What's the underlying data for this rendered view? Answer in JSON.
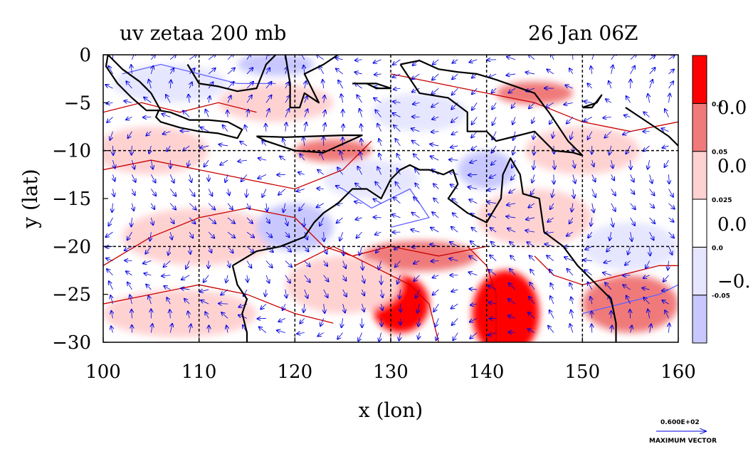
{
  "chart_data": {
    "type": "heatmap",
    "title": "uv zetaa 200 mb",
    "time_label": "26 Jan 06Z",
    "xlabel": "x (lon)",
    "ylabel": "y (lat)",
    "xlim": [
      100,
      160
    ],
    "ylim": [
      -30,
      0
    ],
    "x_ticks": [
      100,
      110,
      120,
      130,
      140,
      150,
      160
    ],
    "y_ticks": [
      0,
      -5,
      -10,
      -15,
      -20,
      -25,
      -30
    ],
    "x_tick_labels": [
      "100",
      "110",
      "120",
      "130",
      "140",
      "150",
      "160"
    ],
    "y_tick_labels": [
      "0",
      "−5",
      "−10",
      "−15",
      "−20",
      "−25",
      "−30"
    ],
    "grid": true,
    "grid_x": [
      110,
      120,
      130,
      140,
      150
    ],
    "grid_y": [
      -10,
      -20
    ],
    "colorbar": {
      "levels": [
        -0.05,
        0,
        0.025,
        0.05,
        0.1
      ],
      "level_labels": [
        "-0.05",
        "0.0",
        "0.025",
        "0.05",
        "0.1"
      ],
      "colors": [
        "#c8c8ff",
        "#e6e6ff",
        "#ffffff",
        "#ffd2d2",
        "#f07a7a",
        "#ff0000"
      ],
      "overflow_labels": [
        "0.0",
        "0.0",
        "0.0",
        "−0."
      ]
    },
    "field_blobs": [
      {
        "lon": 142,
        "lat": -27,
        "rx": 3.5,
        "ry": 4.5,
        "level": 5
      },
      {
        "lon": 131,
        "lat": -26,
        "rx": 3,
        "ry": 3,
        "level": 5
      },
      {
        "lon": 133,
        "lat": -21,
        "rx": 6,
        "ry": 1.6,
        "level": 4
      },
      {
        "lon": 124,
        "lat": -10,
        "rx": 4,
        "ry": 1.2,
        "level": 4
      },
      {
        "lon": 145,
        "lat": -4,
        "rx": 4,
        "ry": 1.2,
        "level": 4
      },
      {
        "lon": 155,
        "lat": -26,
        "rx": 5,
        "ry": 3,
        "level": 4
      },
      {
        "lon": 105,
        "lat": -10,
        "rx": 6,
        "ry": 2.5,
        "level": 3
      },
      {
        "lon": 110,
        "lat": -19,
        "rx": 8,
        "ry": 3,
        "level": 3
      },
      {
        "lon": 108,
        "lat": -27,
        "rx": 8,
        "ry": 2.5,
        "level": 3
      },
      {
        "lon": 125,
        "lat": -24,
        "rx": 6,
        "ry": 3,
        "level": 3
      },
      {
        "lon": 145,
        "lat": -17,
        "rx": 6,
        "ry": 3,
        "level": 3
      },
      {
        "lon": 118,
        "lat": -5,
        "rx": 6,
        "ry": 2,
        "level": 3
      },
      {
        "lon": 150,
        "lat": -10,
        "rx": 6,
        "ry": 2.5,
        "level": 3
      },
      {
        "lon": 107,
        "lat": -3,
        "rx": 6,
        "ry": 2,
        "level": 1
      },
      {
        "lon": 128,
        "lat": -13,
        "rx": 5,
        "ry": 2,
        "level": 1
      },
      {
        "lon": 155,
        "lat": -20,
        "rx": 5,
        "ry": 2.5,
        "level": 1
      },
      {
        "lon": 133,
        "lat": -6,
        "rx": 5,
        "ry": 2,
        "level": 1
      },
      {
        "lon": 120,
        "lat": -18,
        "rx": 4,
        "ry": 2.5,
        "level": 0
      },
      {
        "lon": 140,
        "lat": -12,
        "rx": 3,
        "ry": 2,
        "level": 0
      },
      {
        "lon": 118,
        "lat": -1,
        "rx": 4,
        "ry": 1.2,
        "level": 0
      }
    ],
    "coastlines": [
      [
        [
          113.5,
          -22
        ],
        [
          114,
          -24
        ],
        [
          115,
          -25.5
        ],
        [
          114.5,
          -27
        ],
        [
          115,
          -29
        ],
        [
          115,
          -30
        ]
      ],
      [
        [
          113.5,
          -22
        ],
        [
          116,
          -20.5
        ],
        [
          118.5,
          -20
        ],
        [
          121,
          -19
        ],
        [
          122,
          -17.5
        ],
        [
          123,
          -16.5
        ],
        [
          124.5,
          -15.5
        ],
        [
          126,
          -14
        ],
        [
          127.5,
          -14
        ],
        [
          129,
          -15
        ],
        [
          130,
          -13
        ],
        [
          131,
          -12
        ],
        [
          132,
          -11.5
        ],
        [
          133,
          -12
        ],
        [
          134,
          -12
        ],
        [
          135.5,
          -12.5
        ],
        [
          136.5,
          -12
        ],
        [
          137,
          -13.5
        ],
        [
          136,
          -15
        ],
        [
          138,
          -16.5
        ],
        [
          140,
          -17.5
        ],
        [
          141.5,
          -15
        ],
        [
          141.7,
          -12.5
        ],
        [
          142.5,
          -10.8
        ],
        [
          143.5,
          -12.5
        ],
        [
          143.8,
          -14.5
        ],
        [
          145.5,
          -15
        ],
        [
          146,
          -18.5
        ],
        [
          148,
          -20
        ],
        [
          149.5,
          -22
        ],
        [
          151,
          -23.5
        ],
        [
          153,
          -25.5
        ],
        [
          153.5,
          -28
        ],
        [
          153.5,
          -30
        ]
      ],
      [
        [
          131,
          -1
        ],
        [
          133,
          -0.6
        ],
        [
          135,
          -1.5
        ],
        [
          137,
          -1.8
        ],
        [
          139,
          -2
        ],
        [
          141,
          -2.6
        ],
        [
          143,
          -3.3
        ],
        [
          145,
          -4
        ],
        [
          146.5,
          -6
        ],
        [
          147.5,
          -7.5
        ],
        [
          148.5,
          -9
        ],
        [
          150,
          -10.5
        ],
        [
          149,
          -10.2
        ],
        [
          147,
          -10
        ],
        [
          145,
          -8
        ],
        [
          143,
          -8.5
        ],
        [
          141,
          -9
        ],
        [
          140,
          -8
        ],
        [
          138,
          -8
        ],
        [
          138,
          -6
        ],
        [
          136,
          -4.5
        ],
        [
          133,
          -4
        ],
        [
          132,
          -2.5
        ],
        [
          131,
          -1
        ]
      ],
      [
        [
          105.8,
          -5.8
        ],
        [
          107,
          -6
        ],
        [
          109,
          -6.8
        ],
        [
          111,
          -6.8
        ],
        [
          113,
          -7
        ],
        [
          114.5,
          -7.8
        ],
        [
          114,
          -8.7
        ],
        [
          112,
          -8.2
        ],
        [
          110,
          -8
        ],
        [
          108,
          -7.6
        ],
        [
          106,
          -7
        ],
        [
          105.5,
          -6.5
        ],
        [
          105.8,
          -5.8
        ]
      ],
      [
        [
          100.5,
          0
        ],
        [
          102,
          -1.5
        ],
        [
          103.8,
          -2.8
        ],
        [
          105,
          -4
        ],
        [
          106,
          -5.8
        ],
        [
          104.5,
          -5.8
        ],
        [
          103,
          -4.5
        ],
        [
          101.5,
          -3
        ],
        [
          100.3,
          -1.2
        ],
        [
          100.5,
          0
        ]
      ],
      [
        [
          116,
          -8.5
        ],
        [
          119,
          -8.6
        ],
        [
          122,
          -8.5
        ],
        [
          125,
          -8.4
        ],
        [
          127,
          -8.4
        ],
        [
          125,
          -9.3
        ],
        [
          123,
          -10.2
        ],
        [
          120,
          -10
        ],
        [
          117,
          -9
        ],
        [
          116,
          -8.5
        ]
      ],
      [
        [
          108.8,
          -1
        ],
        [
          110,
          -3
        ],
        [
          112,
          -3.3
        ],
        [
          114,
          -3.8
        ],
        [
          116,
          -3.5
        ],
        [
          117,
          -1
        ],
        [
          118,
          0
        ]
      ],
      [
        [
          119,
          0
        ],
        [
          119.5,
          -3
        ],
        [
          119.5,
          -5.5
        ],
        [
          120.5,
          -5.5
        ],
        [
          121,
          -4
        ],
        [
          122.5,
          -5
        ],
        [
          121,
          -2
        ],
        [
          123,
          -1
        ],
        [
          124.5,
          0
        ]
      ],
      [
        [
          126,
          -3
        ],
        [
          127.5,
          -3
        ],
        [
          128.5,
          -3.5
        ],
        [
          130,
          -3.5
        ],
        [
          128.5,
          -3
        ],
        [
          126,
          -3
        ]
      ],
      [
        [
          150,
          -5.5
        ],
        [
          151.5,
          -5
        ],
        [
          152,
          -4.2
        ],
        [
          151,
          -5.5
        ],
        [
          150,
          -5.5
        ]
      ],
      [
        [
          154.5,
          -5.5
        ],
        [
          156,
          -6.5
        ],
        [
          157.5,
          -7.5
        ],
        [
          159,
          -8.5
        ],
        [
          160,
          -9.5
        ]
      ]
    ],
    "contour_lines": [
      {
        "points": [
          [
            100,
            -12
          ],
          [
            105,
            -11
          ],
          [
            110,
            -12
          ],
          [
            115,
            -13
          ],
          [
            120,
            -14
          ],
          [
            125,
            -12
          ],
          [
            128,
            -9
          ]
        ],
        "color": "#c80000"
      },
      {
        "points": [
          [
            100,
            -22
          ],
          [
            105,
            -19
          ],
          [
            110,
            -17
          ],
          [
            115,
            -16
          ],
          [
            120,
            -17
          ],
          [
            123,
            -20
          ],
          [
            126,
            -21
          ],
          [
            130,
            -20
          ],
          [
            135,
            -21
          ],
          [
            140,
            -20
          ]
        ],
        "color": "#c80000"
      },
      {
        "points": [
          [
            100,
            -26
          ],
          [
            105,
            -25
          ],
          [
            110,
            -24
          ],
          [
            115,
            -25
          ],
          [
            120,
            -27
          ],
          [
            124,
            -28
          ]
        ],
        "color": "#c80000"
      },
      {
        "points": [
          [
            120,
            -22
          ],
          [
            124,
            -20
          ],
          [
            128,
            -22
          ],
          [
            132,
            -24
          ],
          [
            134,
            -26
          ],
          [
            135,
            -30
          ]
        ],
        "color": "#c80000"
      },
      {
        "points": [
          [
            138,
            -20
          ],
          [
            140,
            -22
          ],
          [
            141,
            -25
          ],
          [
            141,
            -30
          ]
        ],
        "color": "#c80000"
      },
      {
        "points": [
          [
            145,
            -21
          ],
          [
            147,
            -23
          ],
          [
            150,
            -24
          ],
          [
            154,
            -23
          ],
          [
            158,
            -22
          ],
          [
            160,
            -22
          ]
        ],
        "color": "#c80000"
      },
      {
        "points": [
          [
            100,
            -6
          ],
          [
            104,
            -5
          ],
          [
            108,
            -6
          ],
          [
            112,
            -5
          ],
          [
            116,
            -6
          ]
        ],
        "color": "#c80000"
      },
      {
        "points": [
          [
            130,
            -2
          ],
          [
            135,
            -3
          ],
          [
            140,
            -4
          ],
          [
            145,
            -5
          ],
          [
            150,
            -7
          ],
          [
            155,
            -8
          ],
          [
            160,
            -7
          ]
        ],
        "color": "#c80000"
      },
      {
        "points": [
          [
            102,
            -2
          ],
          [
            106,
            -1
          ],
          [
            110,
            -2
          ],
          [
            114,
            -3
          ],
          [
            118,
            -3
          ]
        ],
        "color": "#6060ff"
      },
      {
        "points": [
          [
            125,
            -14
          ],
          [
            128,
            -16
          ],
          [
            132,
            -14
          ],
          [
            134,
            -17
          ],
          [
            130,
            -18
          ]
        ],
        "color": "#6060ff"
      },
      {
        "points": [
          [
            150,
            -27
          ],
          [
            154,
            -26
          ],
          [
            158,
            -25
          ],
          [
            160,
            -24
          ]
        ],
        "color": "#6060ff"
      }
    ],
    "vector_field": {
      "dlon": 2,
      "dlat": 1.5,
      "color": "#0000e0"
    },
    "reference_vector": {
      "value_label": "0.600E+02",
      "label": "MAXIMUM VECTOR"
    }
  }
}
